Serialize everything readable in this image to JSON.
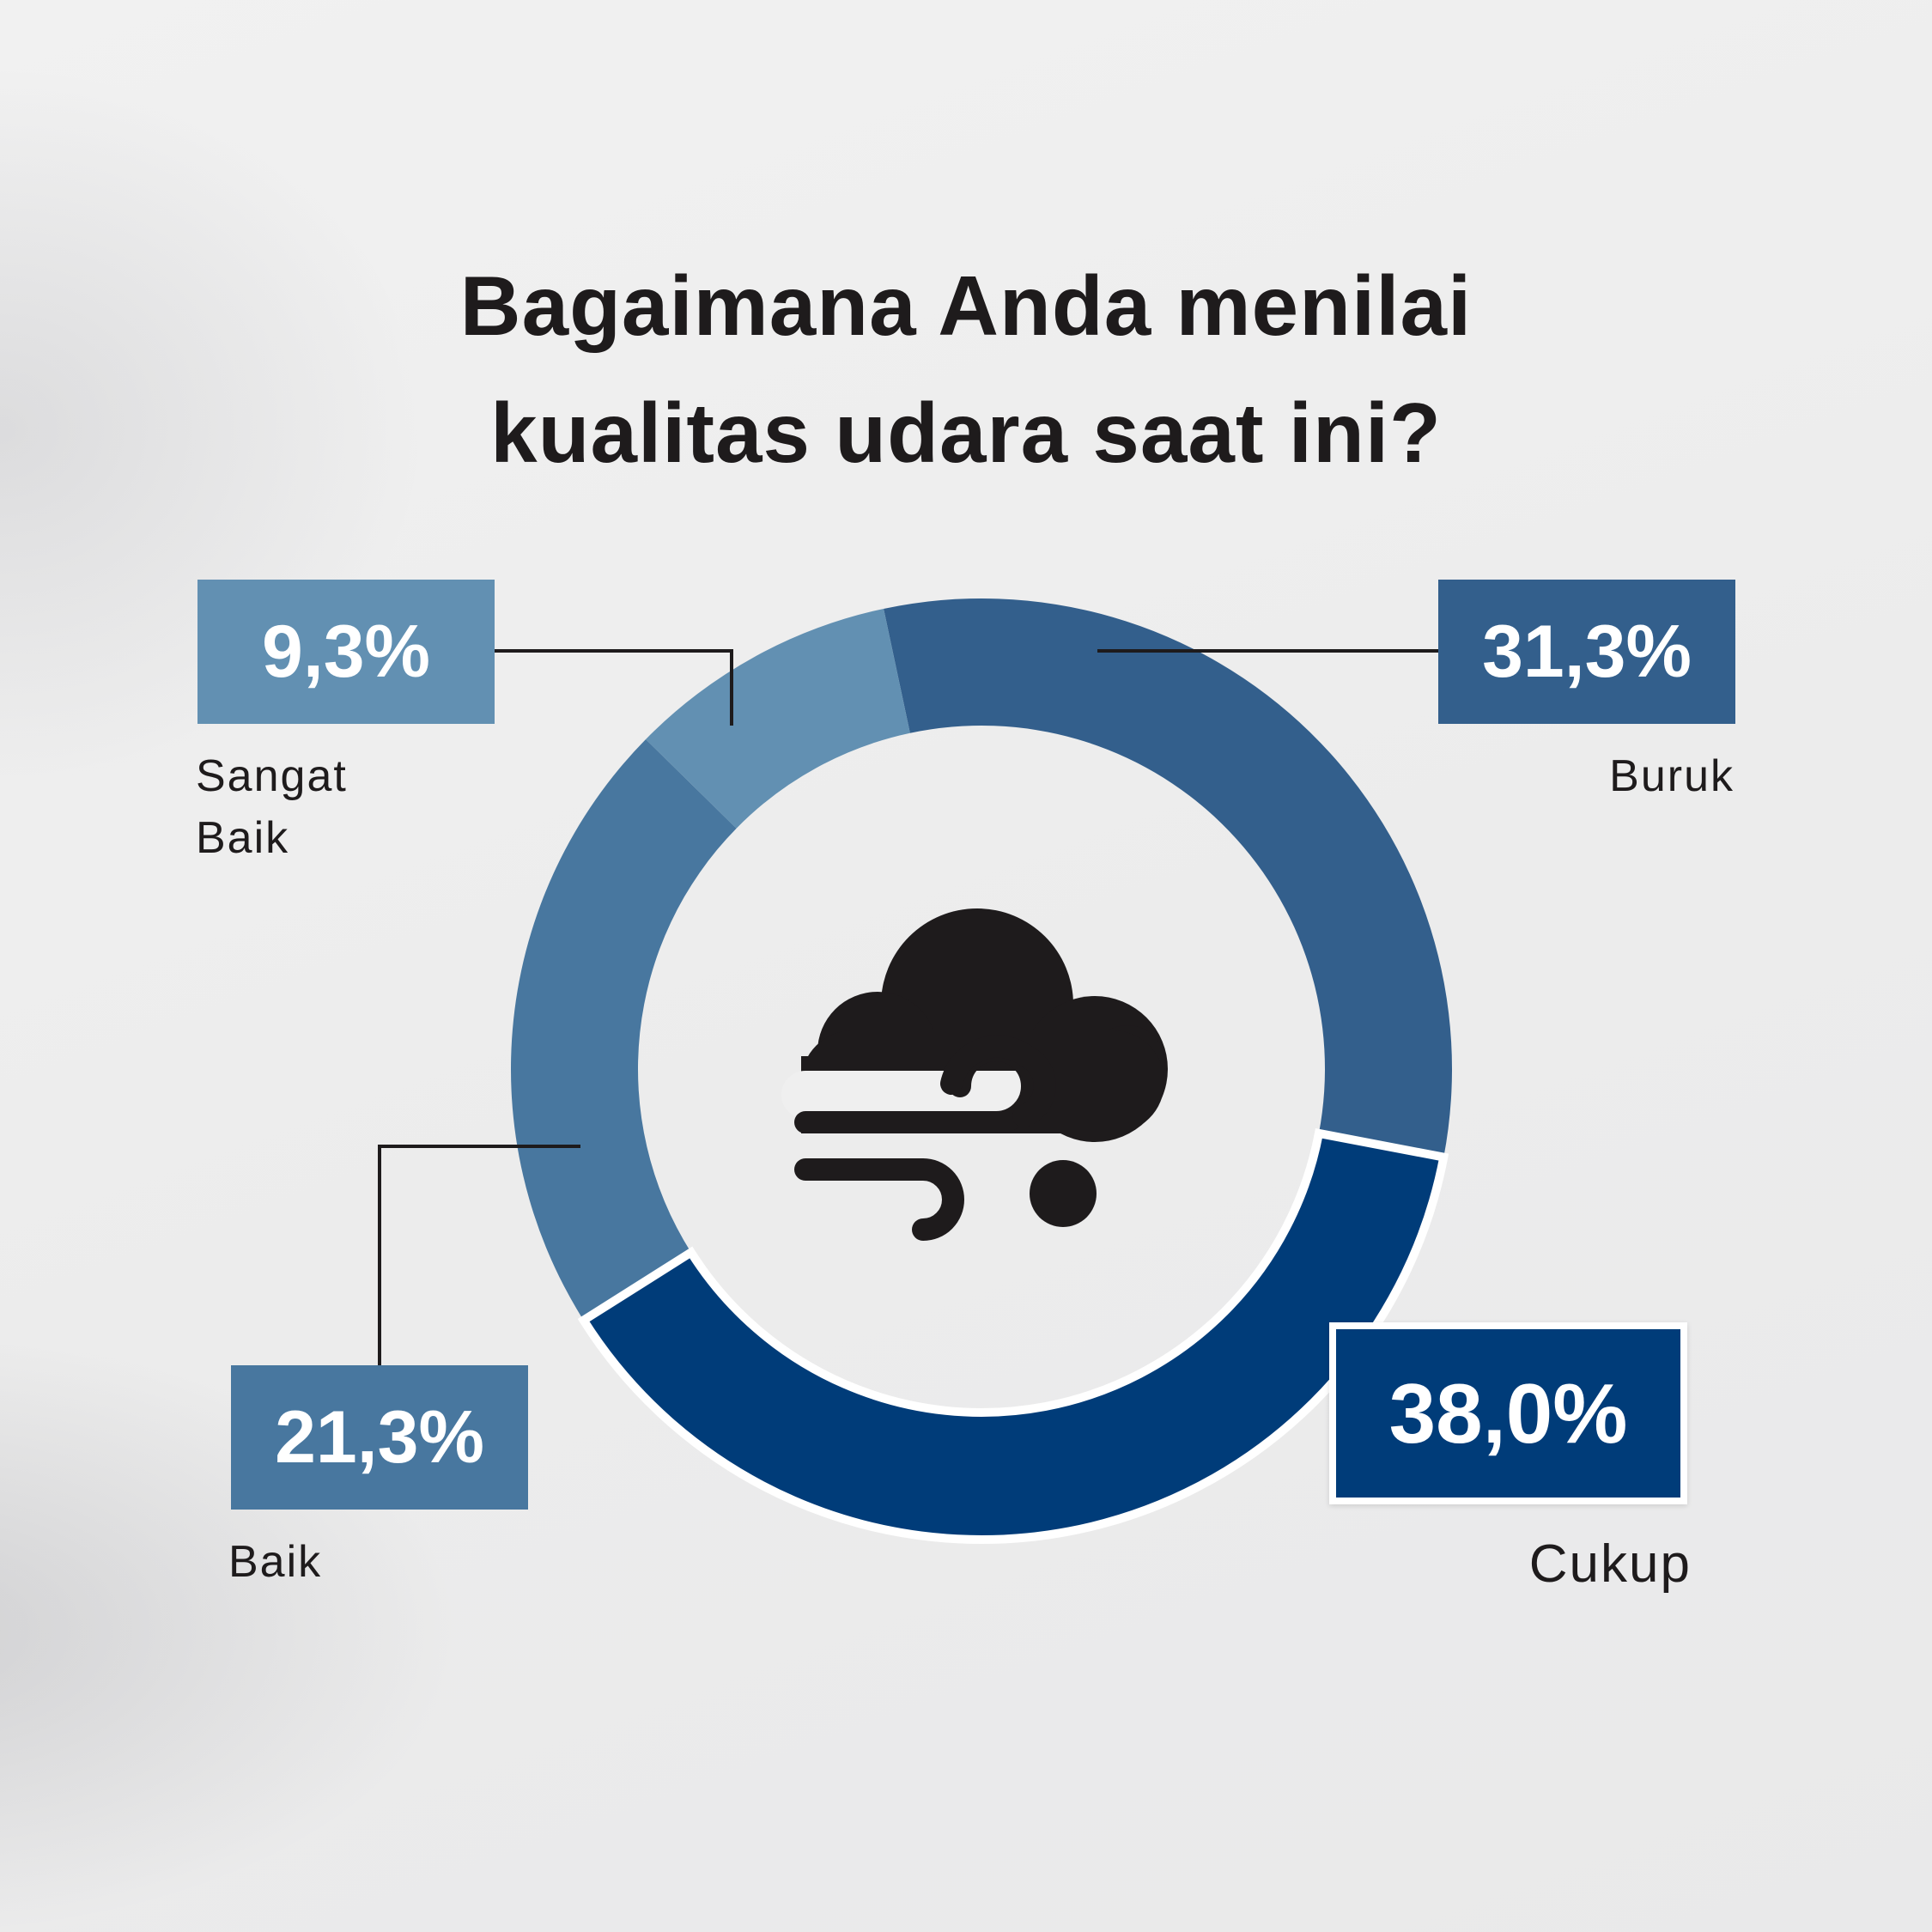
{
  "title_lines": [
    "Bagaimana Anda menilai",
    "kualitas udara saat ini?"
  ],
  "icon": "cloud-wind-icon",
  "chart_data": {
    "type": "pie",
    "variant": "donut",
    "slices": [
      {
        "label": "Buruk",
        "value": 31.3,
        "display": "31,3%",
        "color": "#335f8c"
      },
      {
        "label": "Cukup",
        "value": 38.0,
        "display": "38,0%",
        "color": "#003c79"
      },
      {
        "label": "Baik",
        "value": 21.3,
        "display": "21,3%",
        "color": "#48779f"
      },
      {
        "label": "Sangat Baik",
        "value": 9.3,
        "display": "9,3%",
        "color": "#6290b2"
      }
    ],
    "legend": "callout labels around donut"
  }
}
